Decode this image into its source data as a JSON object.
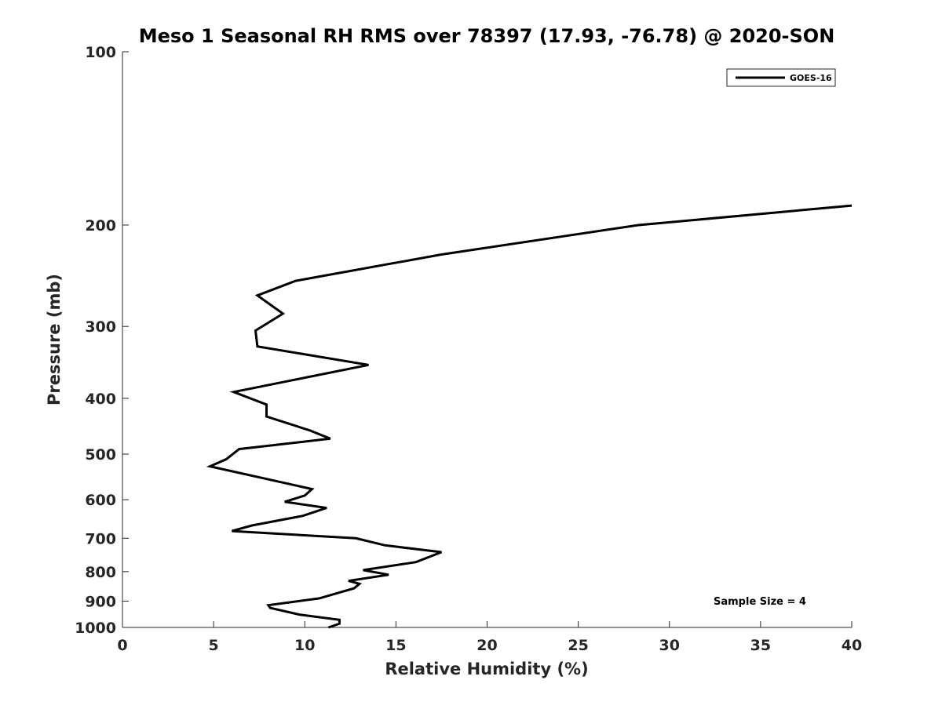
{
  "chart_data": {
    "type": "line",
    "title": "Meso 1 Seasonal RH RMS over 78397 (17.93, -76.78) @ 2020-SON",
    "xlabel": "Relative Humidity (%)",
    "ylabel": "Pressure (mb)",
    "xlim": [
      0,
      40
    ],
    "ylim": [
      1000,
      100
    ],
    "yscale": "log",
    "x_ticks": [
      "0",
      "5",
      "10",
      "15",
      "20",
      "25",
      "30",
      "35",
      "40"
    ],
    "y_ticks": [
      "100",
      "200",
      "300",
      "400",
      "500",
      "600",
      "700",
      "800",
      "900",
      "1000"
    ],
    "grid": false,
    "legend_position": "top-right",
    "annotation": "Sample Size = 4",
    "series": [
      {
        "name": "GOES-16",
        "color": "#000000",
        "points": [
          {
            "x": 11.3,
            "y": 1000
          },
          {
            "x": 11.9,
            "y": 985
          },
          {
            "x": 11.9,
            "y": 970
          },
          {
            "x": 9.7,
            "y": 950
          },
          {
            "x": 8.1,
            "y": 925
          },
          {
            "x": 8.0,
            "y": 915
          },
          {
            "x": 10.8,
            "y": 890
          },
          {
            "x": 12.7,
            "y": 855
          },
          {
            "x": 13.0,
            "y": 840
          },
          {
            "x": 12.4,
            "y": 830
          },
          {
            "x": 14.6,
            "y": 810
          },
          {
            "x": 13.2,
            "y": 795
          },
          {
            "x": 16.1,
            "y": 770
          },
          {
            "x": 17.5,
            "y": 740
          },
          {
            "x": 14.4,
            "y": 720
          },
          {
            "x": 12.8,
            "y": 700
          },
          {
            "x": 6.0,
            "y": 680
          },
          {
            "x": 7.1,
            "y": 665
          },
          {
            "x": 9.9,
            "y": 640
          },
          {
            "x": 11.2,
            "y": 620
          },
          {
            "x": 8.9,
            "y": 605
          },
          {
            "x": 10.0,
            "y": 590
          },
          {
            "x": 10.4,
            "y": 575
          },
          {
            "x": 4.8,
            "y": 525
          },
          {
            "x": 5.7,
            "y": 510
          },
          {
            "x": 6.4,
            "y": 490
          },
          {
            "x": 11.4,
            "y": 470
          },
          {
            "x": 10.3,
            "y": 455
          },
          {
            "x": 7.9,
            "y": 430
          },
          {
            "x": 7.9,
            "y": 410
          },
          {
            "x": 6.1,
            "y": 390
          },
          {
            "x": 13.5,
            "y": 350
          },
          {
            "x": 7.4,
            "y": 325
          },
          {
            "x": 7.3,
            "y": 305
          },
          {
            "x": 8.8,
            "y": 285
          },
          {
            "x": 7.4,
            "y": 265
          },
          {
            "x": 9.5,
            "y": 250
          },
          {
            "x": 17.5,
            "y": 225
          },
          {
            "x": 28.3,
            "y": 200
          },
          {
            "x": 40.0,
            "y": 185
          }
        ]
      }
    ]
  }
}
